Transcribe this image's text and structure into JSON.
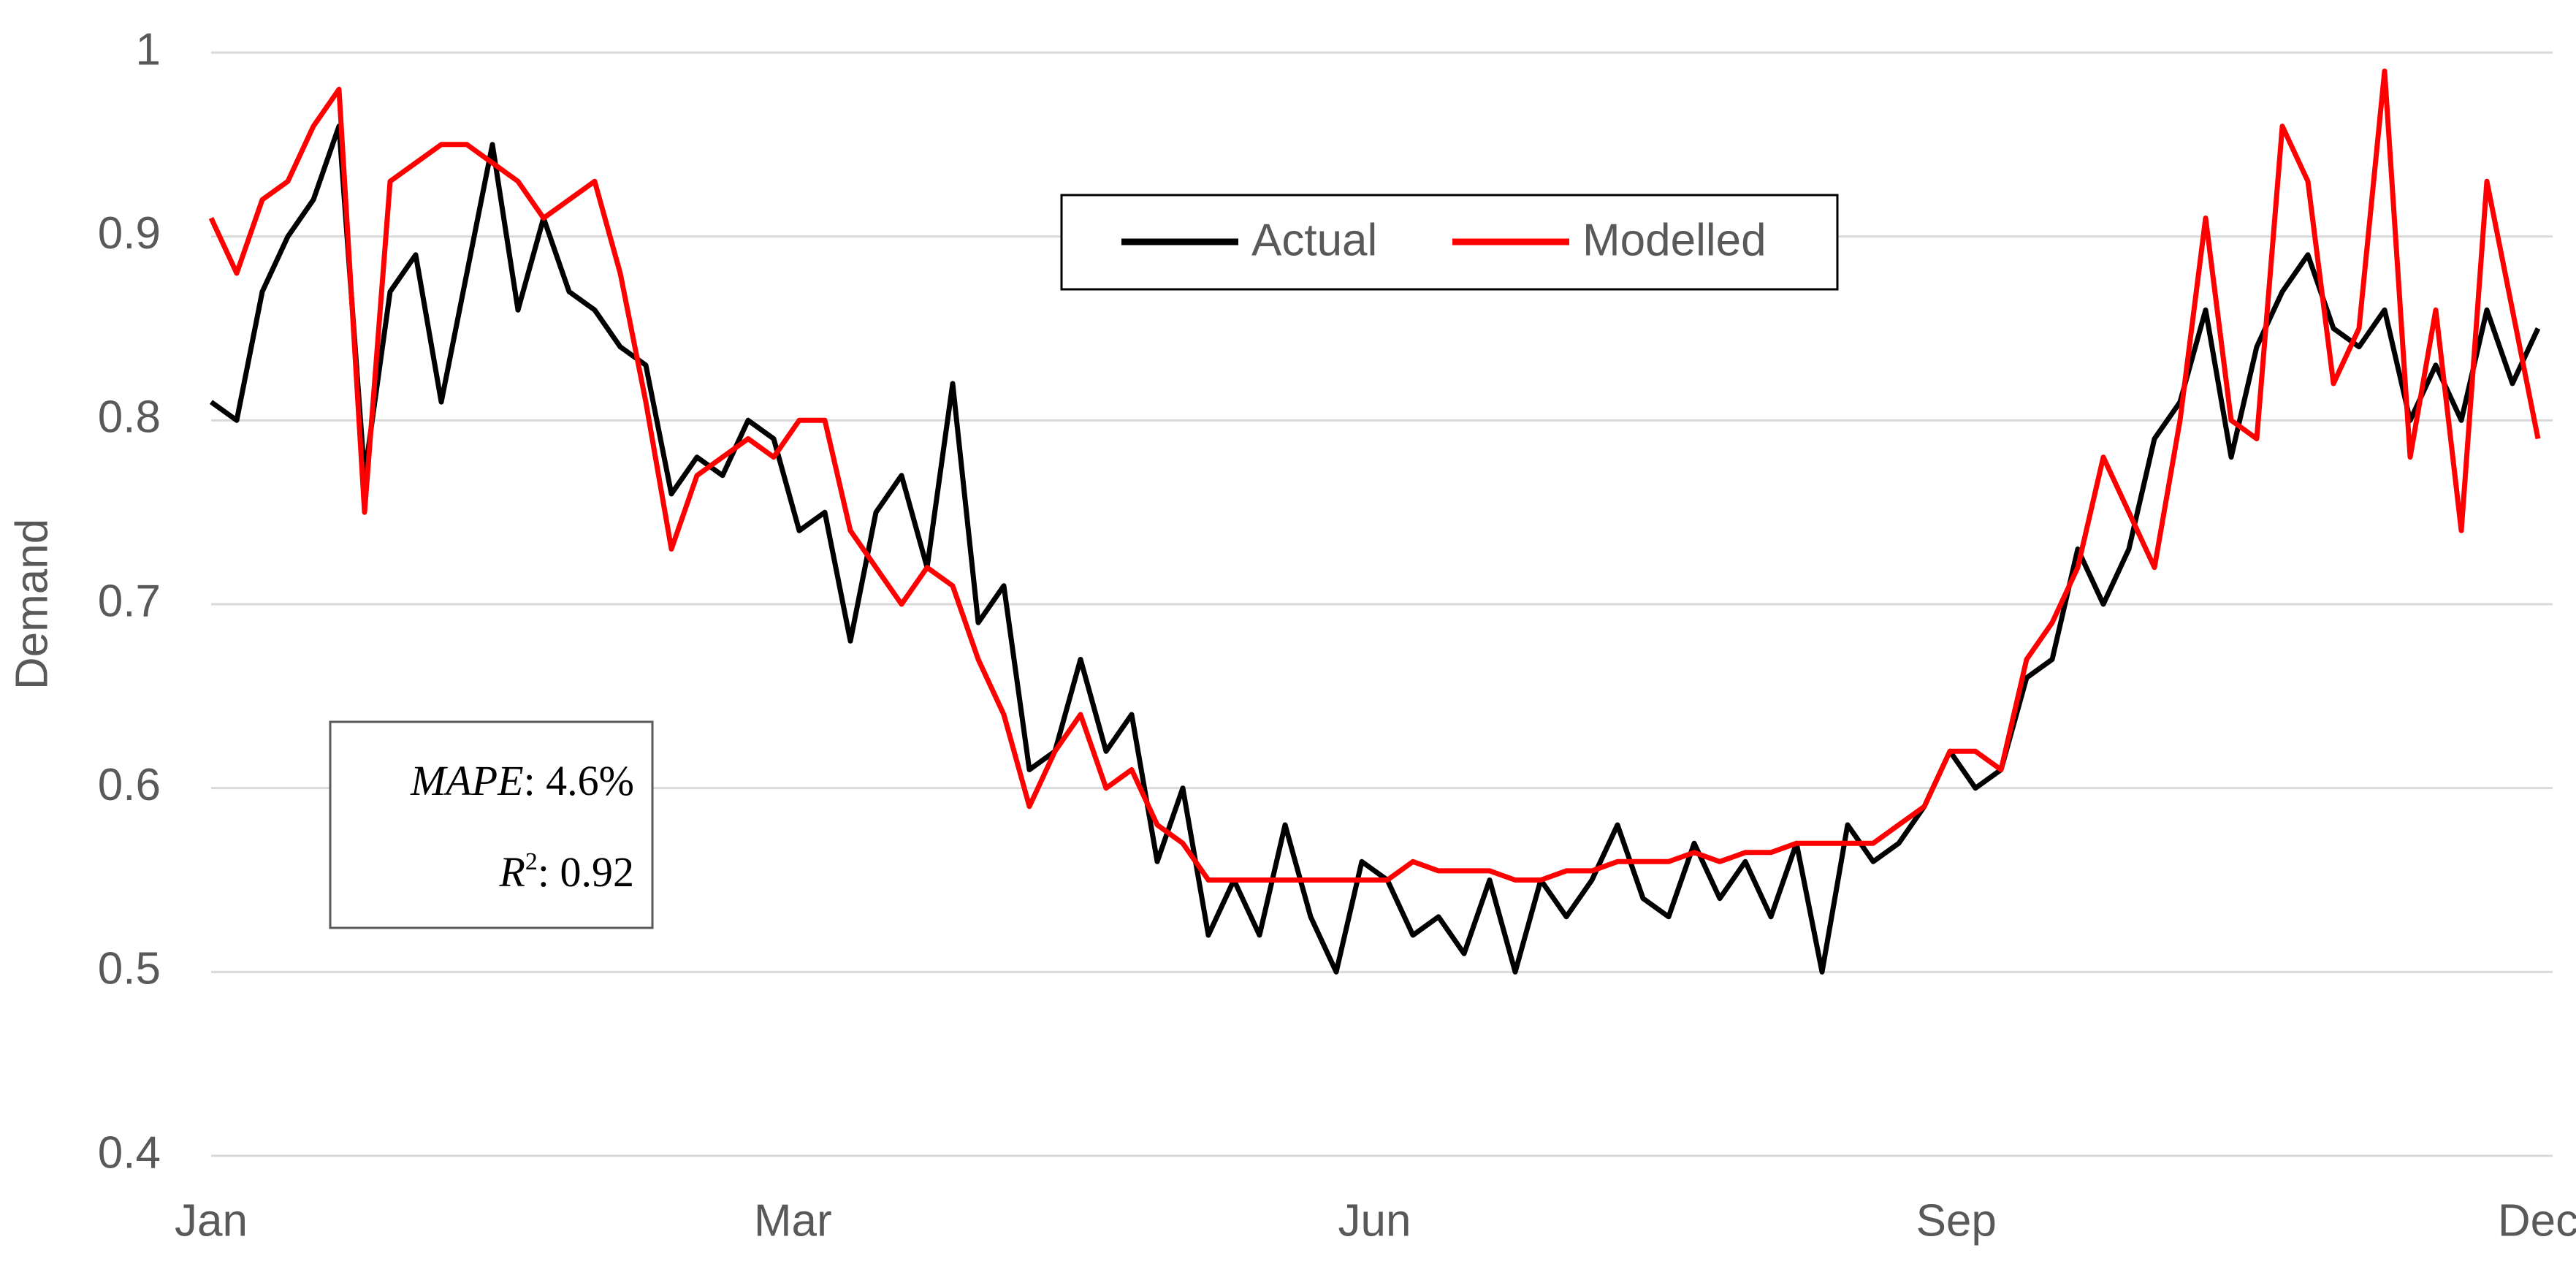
{
  "chart_data": {
    "type": "line",
    "y_label": "Demand",
    "x": [
      0,
      4,
      8,
      12,
      16,
      20,
      24,
      28,
      32,
      36,
      40,
      44,
      48,
      52,
      56,
      60,
      64,
      68,
      72,
      76,
      80,
      84,
      88,
      92,
      96,
      100,
      104,
      108,
      112,
      116,
      120,
      124,
      128,
      132,
      136,
      140,
      144,
      148,
      152,
      156,
      160,
      164,
      168,
      172,
      176,
      180,
      184,
      188,
      192,
      196,
      200,
      204,
      208,
      212,
      216,
      220,
      224,
      228,
      232,
      236,
      240,
      244,
      248,
      252,
      256,
      260,
      264,
      268,
      272,
      276,
      280,
      284,
      288,
      292,
      296,
      300,
      304,
      308,
      312,
      316,
      320,
      324,
      328,
      332,
      336,
      340,
      344,
      348,
      352,
      356,
      360,
      364
    ],
    "xlim": [
      0,
      364
    ],
    "xticks": [
      {
        "value": 0,
        "label": "Jan"
      },
      {
        "value": 91,
        "label": "Mar"
      },
      {
        "value": 182,
        "label": "Jun"
      },
      {
        "value": 273,
        "label": "Sep"
      },
      {
        "value": 364,
        "label": "Dec"
      }
    ],
    "ylim": [
      0.4,
      1
    ],
    "yticks": [
      0.4,
      0.5,
      0.6,
      0.7,
      0.8,
      0.9,
      1
    ],
    "grid": true,
    "legend": "top-center",
    "series": [
      {
        "name": "Actual",
        "color": "#000000",
        "values": [
          0.81,
          0.8,
          0.87,
          0.9,
          0.92,
          0.96,
          0.77,
          0.87,
          0.89,
          0.81,
          0.88,
          0.95,
          0.86,
          0.91,
          0.87,
          0.86,
          0.84,
          0.83,
          0.76,
          0.78,
          0.77,
          0.8,
          0.79,
          0.74,
          0.75,
          0.68,
          0.75,
          0.77,
          0.72,
          0.82,
          0.69,
          0.71,
          0.61,
          0.62,
          0.67,
          0.62,
          0.64,
          0.56,
          0.6,
          0.52,
          0.55,
          0.52,
          0.58,
          0.53,
          0.5,
          0.56,
          0.55,
          0.52,
          0.53,
          0.51,
          0.55,
          0.5,
          0.55,
          0.53,
          0.55,
          0.58,
          0.54,
          0.53,
          0.57,
          0.54,
          0.56,
          0.53,
          0.57,
          0.5,
          0.58,
          0.56,
          0.57,
          0.59,
          0.62,
          0.6,
          0.61,
          0.66,
          0.67,
          0.73,
          0.7,
          0.73,
          0.79,
          0.81,
          0.86,
          0.78,
          0.84,
          0.87,
          0.89,
          0.85,
          0.84,
          0.86,
          0.8,
          0.83,
          0.8,
          0.86,
          0.82,
          0.85
        ]
      },
      {
        "name": "Modelled",
        "color": "#ff0000",
        "values": [
          0.91,
          0.88,
          0.92,
          0.93,
          0.96,
          0.98,
          0.75,
          0.93,
          0.94,
          0.95,
          0.95,
          0.94,
          0.93,
          0.91,
          0.92,
          0.93,
          0.88,
          0.81,
          0.73,
          0.77,
          0.78,
          0.79,
          0.78,
          0.8,
          0.8,
          0.74,
          0.72,
          0.7,
          0.72,
          0.71,
          0.67,
          0.64,
          0.59,
          0.62,
          0.64,
          0.6,
          0.61,
          0.58,
          0.57,
          0.55,
          0.55,
          0.55,
          0.55,
          0.55,
          0.55,
          0.55,
          0.55,
          0.56,
          0.555,
          0.555,
          0.555,
          0.55,
          0.55,
          0.555,
          0.555,
          0.56,
          0.56,
          0.56,
          0.565,
          0.56,
          0.565,
          0.565,
          0.57,
          0.57,
          0.57,
          0.57,
          0.58,
          0.59,
          0.62,
          0.62,
          0.61,
          0.67,
          0.69,
          0.72,
          0.78,
          0.75,
          0.72,
          0.8,
          0.91,
          0.8,
          0.79,
          0.96,
          0.93,
          0.82,
          0.85,
          0.99,
          0.78,
          0.86,
          0.74,
          0.93,
          0.86,
          0.79
        ]
      }
    ],
    "annotations": [
      {
        "term": "MAPE",
        "rest": ": 4.6%"
      },
      {
        "term": "R",
        "superscript": "2",
        "rest": ": 0.92"
      }
    ]
  }
}
